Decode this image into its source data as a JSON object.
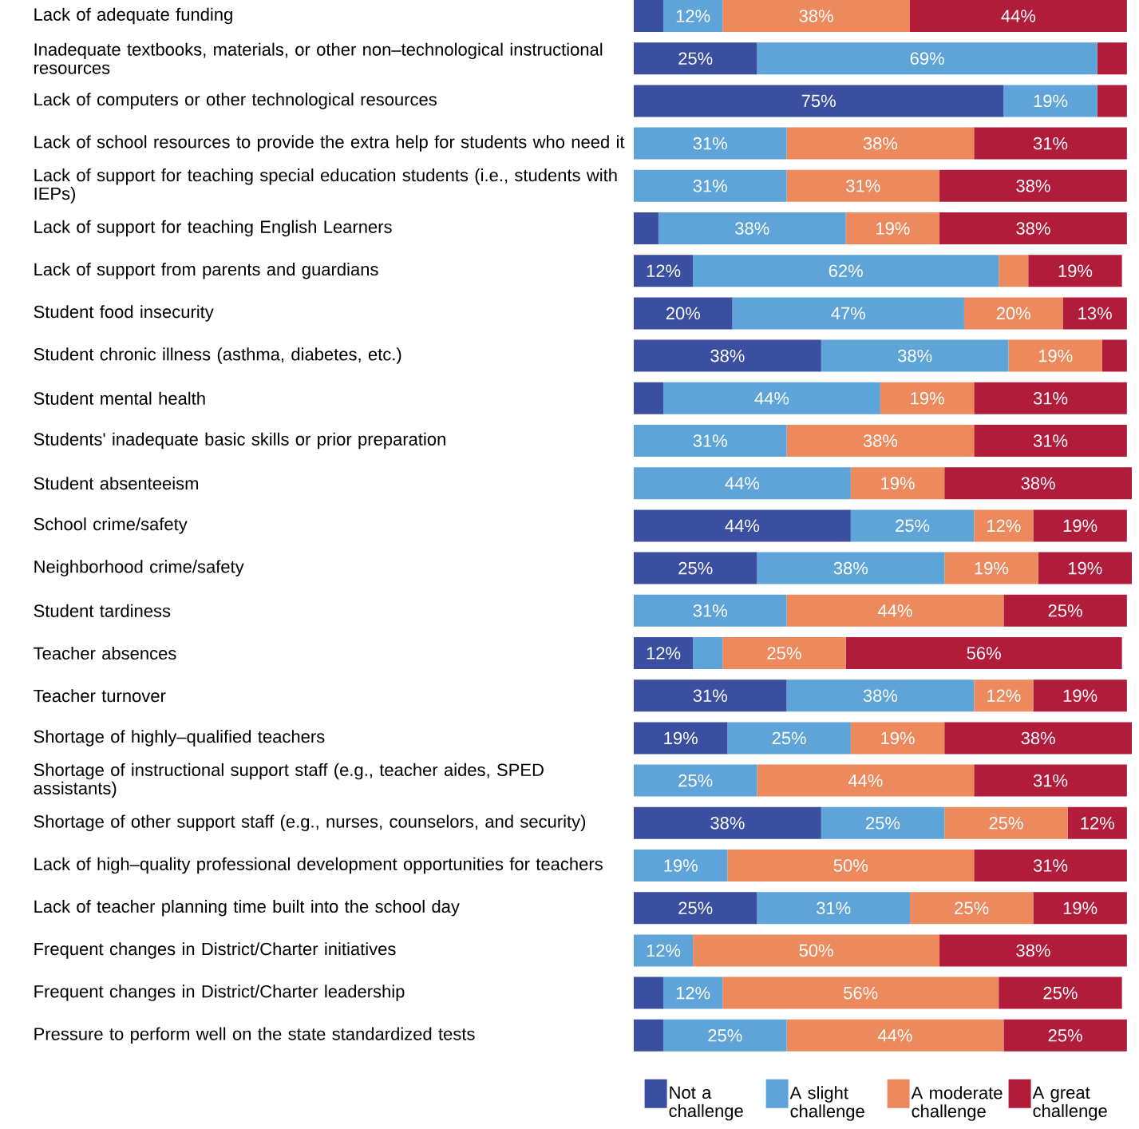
{
  "chart_data": {
    "type": "bar",
    "orientation": "horizontal",
    "stacked": true,
    "categories": [
      "Lack of adequate funding",
      "Inadequate textbooks, materials, or other non–technological instructional resources",
      "Lack of computers or other technological resources",
      "Lack of school resources to provide the extra help for students who need it",
      "Lack of support for teaching special education students (i.e., students with IEPs)",
      "Lack of support for teaching English Learners",
      "Lack of support from parents and guardians",
      "Student food insecurity",
      "Student chronic illness (asthma, diabetes, etc.)",
      "Student mental health",
      "Students' inadequate basic skills or prior preparation",
      "Student absenteeism",
      "School crime/safety",
      "Neighborhood crime/safety",
      "Student tardiness",
      "Teacher absences",
      "Teacher turnover",
      "Shortage of highly–qualified teachers",
      "Shortage of instructional support staff (e.g., teacher aides, SPED assistants)",
      "Shortage of other support staff (e.g., nurses, counselors, and security)",
      "Lack of high–quality professional development opportunities for teachers",
      "Lack of teacher planning time built into the school day",
      "Frequent changes in District/Charter initiatives",
      "Frequent changes in District/Charter leadership",
      "Pressure to perform well on the state standardized tests"
    ],
    "tick_labels": "y",
    "legend": "bottom right",
    "series": [
      {
        "name": "Not a challenge",
        "color": "#3b4fa0",
        "values": [
          6,
          25,
          75,
          null,
          null,
          5,
          12,
          20,
          38,
          6,
          null,
          null,
          44,
          25,
          null,
          12,
          31,
          19,
          null,
          38,
          null,
          25,
          null,
          6,
          6
        ],
        "value_labels": [
          null,
          "25%",
          "75%",
          null,
          null,
          null,
          "12%",
          "20%",
          "38%",
          null,
          null,
          null,
          "44%",
          "25%",
          null,
          "12%",
          "31%",
          "19%",
          null,
          "38%",
          null,
          "25%",
          null,
          null,
          null
        ]
      },
      {
        "name": "A slight challenge",
        "color": "#5ea4d9",
        "values": [
          12,
          69,
          19,
          31,
          31,
          38,
          62,
          47,
          38,
          44,
          31,
          44,
          25,
          38,
          31,
          6,
          38,
          25,
          25,
          25,
          19,
          31,
          12,
          12,
          25
        ],
        "value_labels": [
          "12%",
          "69%",
          "19%",
          "31%",
          "31%",
          "38%",
          "62%",
          "47%",
          "38%",
          "44%",
          "31%",
          "44%",
          "25%",
          "38%",
          "31%",
          null,
          "38%",
          "25%",
          "25%",
          "25%",
          "19%",
          "31%",
          "12%",
          "12%",
          "25%"
        ]
      },
      {
        "name": "A moderate challenge",
        "color": "#ec8a5e",
        "values": [
          38,
          null,
          null,
          38,
          31,
          19,
          6,
          20,
          19,
          19,
          38,
          19,
          12,
          19,
          44,
          25,
          12,
          19,
          44,
          25,
          50,
          25,
          50,
          56,
          44
        ],
        "value_labels": [
          "38%",
          null,
          null,
          "38%",
          "31%",
          "19%",
          null,
          "20%",
          "19%",
          "19%",
          "38%",
          "19%",
          "12%",
          "19%",
          "44%",
          "25%",
          "12%",
          "19%",
          "44%",
          "25%",
          "50%",
          "25%",
          "50%",
          "56%",
          "44%"
        ]
      },
      {
        "name": "A great challenge",
        "color": "#b01c3a",
        "values": [
          44,
          6,
          6,
          31,
          38,
          38,
          19,
          13,
          5,
          31,
          31,
          38,
          19,
          19,
          25,
          56,
          19,
          38,
          31,
          12,
          31,
          19,
          38,
          25,
          25
        ],
        "value_labels": [
          "44%",
          null,
          null,
          "31%",
          "38%",
          "38%",
          "19%",
          "13%",
          null,
          "31%",
          "31%",
          "38%",
          "19%",
          "19%",
          "25%",
          "56%",
          "19%",
          "38%",
          "31%",
          "12%",
          "31%",
          "19%",
          "38%",
          "25%",
          "25%"
        ]
      }
    ]
  }
}
